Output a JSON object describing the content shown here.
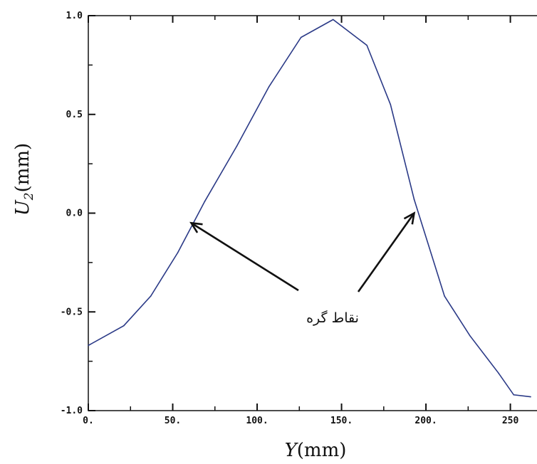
{
  "chart_data": {
    "type": "line",
    "title": "",
    "xlabel_var": "Y",
    "xlabel_unit": "(mm)",
    "ylabel_var": "U",
    "ylabel_sub": "2",
    "ylabel_unit": "(mm)",
    "xlim": [
      0,
      270
    ],
    "ylim": [
      -1.0,
      1.0
    ],
    "x_ticks": [
      0,
      50,
      100,
      150,
      200,
      250
    ],
    "x_tick_labels": [
      "0.",
      "50.",
      "100.",
      "150.",
      "200.",
      "250"
    ],
    "y_ticks": [
      -1.0,
      -0.5,
      0.0,
      0.5,
      1.0
    ],
    "y_tick_labels": [
      "-1.0",
      "-0.5",
      "0.0",
      "0.5",
      "1.0"
    ],
    "grid": false,
    "series": [
      {
        "color": "#2b3a87",
        "x": [
          0,
          21,
          37,
          53,
          69,
          88,
          107,
          126,
          145,
          165,
          179,
          193,
          211,
          226,
          243,
          252,
          262
        ],
        "y": [
          -0.67,
          -0.57,
          -0.42,
          -0.2,
          0.06,
          0.34,
          0.64,
          0.89,
          0.98,
          0.85,
          0.55,
          0.07,
          -0.42,
          -0.62,
          -0.81,
          -0.92,
          -0.93
        ]
      }
    ],
    "annotations": [
      {
        "text": "نقاط گره",
        "arrows_to": [
          [
            61,
            -0.05
          ],
          [
            193,
            0.0
          ]
        ]
      }
    ]
  }
}
